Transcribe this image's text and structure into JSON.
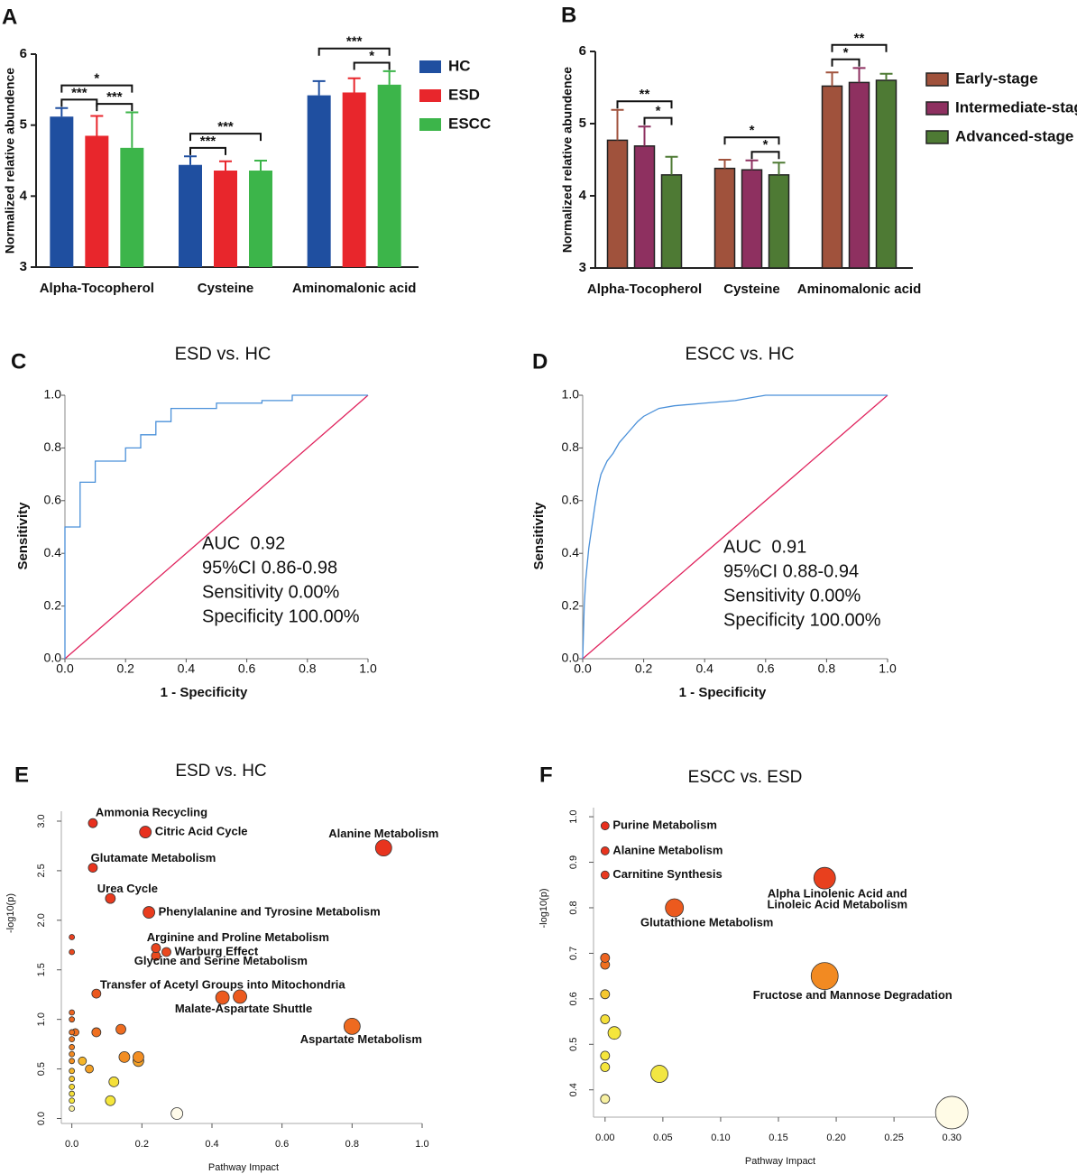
{
  "chart_data": [
    {
      "panel": "A",
      "type": "bar",
      "ylabel": "Normalized relative abundence",
      "categories": [
        "Alpha-Tocopherol",
        "Cysteine",
        "Aminomalonic acid"
      ],
      "ylim": [
        3,
        6
      ],
      "yticks": [
        3,
        4,
        5,
        6
      ],
      "series": [
        {
          "name": "HC",
          "color": "#1f4fa0",
          "values": [
            5.12,
            4.44,
            5.42
          ],
          "errors": [
            0.12,
            0.12,
            0.2
          ]
        },
        {
          "name": "ESD",
          "color": "#e8262c",
          "values": [
            4.85,
            4.36,
            5.46
          ],
          "errors": [
            0.28,
            0.13,
            0.2
          ]
        },
        {
          "name": "ESCC",
          "color": "#3cb54a",
          "values": [
            4.68,
            4.36,
            5.57
          ],
          "errors": [
            0.5,
            0.14,
            0.19
          ]
        }
      ],
      "annotations": [
        {
          "text": "***",
          "category": 0,
          "from": 0,
          "to": 1
        },
        {
          "text": "***",
          "category": 0,
          "from": 1,
          "to": 2
        },
        {
          "text": "*",
          "category": 0,
          "from": 0,
          "to": 2
        },
        {
          "text": "***",
          "category": 1,
          "from": 0,
          "to": 1
        },
        {
          "text": "***",
          "category": 1,
          "from": 0,
          "to": 2
        },
        {
          "text": "*",
          "category": 2,
          "from": 1,
          "to": 2
        },
        {
          "text": "***",
          "category": 2,
          "from": 0,
          "to": 2
        }
      ]
    },
    {
      "panel": "B",
      "type": "bar",
      "ylabel": "Normalized relative abundence",
      "categories": [
        "Alpha-Tocopherol",
        "Cysteine",
        "Aminomalonic acid"
      ],
      "ylim": [
        3,
        6
      ],
      "yticks": [
        3,
        4,
        5,
        6
      ],
      "series": [
        {
          "name": "Early-stage",
          "color": "#a0523c",
          "values": [
            4.77,
            4.38,
            5.52
          ],
          "errors": [
            0.42,
            0.12,
            0.19
          ]
        },
        {
          "name": "Intermediate-stage",
          "color": "#8e3060",
          "values": [
            4.69,
            4.36,
            5.57
          ],
          "errors": [
            0.27,
            0.13,
            0.2
          ]
        },
        {
          "name": "Advanced-stage",
          "color": "#4e7a34",
          "values": [
            4.29,
            4.29,
            5.6
          ],
          "errors": [
            0.25,
            0.17,
            0.09
          ]
        }
      ],
      "annotations": [
        {
          "text": "*",
          "category": 0,
          "from": 1,
          "to": 2
        },
        {
          "text": "**",
          "category": 0,
          "from": 0,
          "to": 2
        },
        {
          "text": "*",
          "category": 1,
          "from": 1,
          "to": 2
        },
        {
          "text": "*",
          "category": 1,
          "from": 0,
          "to": 2
        },
        {
          "text": "*",
          "category": 2,
          "from": 0,
          "to": 1
        },
        {
          "text": "**",
          "category": 2,
          "from": 0,
          "to": 2
        }
      ]
    },
    {
      "panel": "C",
      "type": "line",
      "title": "ESD vs. HC",
      "xlabel": "1 - Specificity",
      "ylabel": "Sensitivity",
      "xlim": [
        0,
        1
      ],
      "ylim": [
        0,
        1
      ],
      "xticks": [
        {
          "value": 0,
          "label": "0.0"
        },
        {
          "value": 0.2,
          "label": "0.2"
        },
        {
          "value": 0.4,
          "label": "0.4"
        },
        {
          "value": 0.6,
          "label": "0.6"
        },
        {
          "value": 0.8,
          "label": "0.8"
        },
        {
          "value": 1,
          "label": "1.0"
        }
      ],
      "yticks": [
        {
          "value": 0,
          "label": "0.0"
        },
        {
          "value": 0.2,
          "label": "0.2"
        },
        {
          "value": 0.4,
          "label": "0.4"
        },
        {
          "value": 0.6,
          "label": "0.6"
        },
        {
          "value": 0.8,
          "label": "0.8"
        },
        {
          "value": 1,
          "label": "1.0"
        }
      ],
      "series": [
        {
          "color": "#4a90d9",
          "x": [
            0,
            0,
            0.05,
            0.05,
            0.1,
            0.1,
            0.2,
            0.2,
            0.25,
            0.25,
            0.3,
            0.3,
            0.35,
            0.35,
            0.5,
            0.5,
            0.65,
            0.65,
            0.75,
            0.75,
            1
          ],
          "values": [
            0,
            0.5,
            0.5,
            0.67,
            0.67,
            0.75,
            0.75,
            0.8,
            0.8,
            0.85,
            0.85,
            0.9,
            0.9,
            0.95,
            0.95,
            0.97,
            0.97,
            0.98,
            0.98,
            1,
            1
          ]
        },
        {
          "color": "#e0245e",
          "x": [
            0,
            1
          ],
          "values": [
            0,
            1
          ]
        }
      ],
      "annotations": [
        "AUC  0.92",
        "95%CI 0.86-0.98",
        "Sensitivity 0.00%",
        "Specificity 100.00%"
      ]
    },
    {
      "panel": "D",
      "type": "line",
      "title": "ESCC vs. HC",
      "xlabel": "1 - Specificity",
      "ylabel": "Sensitivity",
      "xlim": [
        0,
        1
      ],
      "ylim": [
        0,
        1
      ],
      "xticks": [
        {
          "value": 0,
          "label": "0.0"
        },
        {
          "value": 0.2,
          "label": "0.2"
        },
        {
          "value": 0.4,
          "label": "0.4"
        },
        {
          "value": 0.6,
          "label": "0.6"
        },
        {
          "value": 0.8,
          "label": "0.8"
        },
        {
          "value": 1,
          "label": "1.0"
        }
      ],
      "yticks": [
        {
          "value": 0,
          "label": "0.0"
        },
        {
          "value": 0.2,
          "label": "0.2"
        },
        {
          "value": 0.4,
          "label": "0.4"
        },
        {
          "value": 0.6,
          "label": "0.6"
        },
        {
          "value": 0.8,
          "label": "0.8"
        },
        {
          "value": 1,
          "label": "1.0"
        }
      ],
      "series": [
        {
          "color": "#4a90d9",
          "x": [
            0,
            0.005,
            0.01,
            0.02,
            0.03,
            0.04,
            0.05,
            0.06,
            0.08,
            0.1,
            0.12,
            0.15,
            0.18,
            0.2,
            0.25,
            0.3,
            0.4,
            0.5,
            0.55,
            0.6,
            0.7,
            0.8,
            1
          ],
          "values": [
            0,
            0.2,
            0.3,
            0.42,
            0.5,
            0.58,
            0.65,
            0.7,
            0.75,
            0.78,
            0.82,
            0.86,
            0.9,
            0.92,
            0.95,
            0.96,
            0.97,
            0.98,
            0.99,
            1,
            1,
            1,
            1
          ]
        },
        {
          "color": "#e0245e",
          "x": [
            0,
            1
          ],
          "values": [
            0,
            1
          ]
        }
      ],
      "annotations": [
        "AUC  0.91",
        "95%CI 0.88-0.94",
        "Sensitivity 0.00%",
        "Specificity 100.00%"
      ]
    },
    {
      "panel": "E",
      "type": "scatter",
      "title": "ESD vs. HC",
      "xlabel": "Pathway Impact",
      "ylabel": "-log10(p)",
      "xlim": [
        -0.03,
        1
      ],
      "ylim": [
        -0.05,
        3.1
      ],
      "xticks": [
        {
          "value": 0,
          "label": "0.0"
        },
        {
          "value": 0.2,
          "label": "0.2"
        },
        {
          "value": 0.4,
          "label": "0.4"
        },
        {
          "value": 0.6,
          "label": "0.6"
        },
        {
          "value": 0.8,
          "label": "0.8"
        },
        {
          "value": 1,
          "label": "1.0"
        }
      ],
      "yticks": [
        {
          "value": 0,
          "label": "0.0"
        },
        {
          "value": 0.5,
          "label": "0.5"
        },
        {
          "value": 1,
          "label": "1.0"
        },
        {
          "value": 1.5,
          "label": "1.5"
        },
        {
          "value": 2,
          "label": "2.0"
        },
        {
          "value": 2.5,
          "label": "2.5"
        },
        {
          "value": 3,
          "label": "3.0"
        }
      ],
      "x": [
        0.06,
        0.21,
        0.89,
        0.06,
        0.11,
        0.22,
        0.24,
        0.27,
        0.24,
        0.07,
        0.43,
        0.48,
        0.8,
        0,
        0,
        0,
        0,
        0,
        0.01,
        0.07,
        0.14,
        0,
        0,
        0,
        0,
        0.03,
        0.05,
        0.15,
        0.19,
        0.19,
        0,
        0,
        0,
        0,
        0,
        0,
        0.12,
        0.11,
        0.3
      ],
      "values": [
        2.98,
        2.89,
        2.73,
        2.53,
        2.22,
        2.08,
        1.72,
        1.68,
        1.64,
        1.26,
        1.22,
        1.23,
        0.93,
        1.83,
        1.68,
        1.07,
        1.0,
        0.87,
        0.87,
        0.87,
        0.9,
        0.8,
        0.72,
        0.65,
        0.58,
        0.58,
        0.5,
        0.62,
        0.62,
        0.58,
        0.48,
        0.4,
        0.32,
        0.25,
        0.18,
        0.1,
        0.37,
        0.18,
        0.05
      ],
      "sizes": [
        5,
        6.5,
        9,
        5,
        5.5,
        6.5,
        5,
        5,
        5,
        5,
        7.5,
        7.5,
        9,
        3,
        3,
        3,
        3,
        3,
        4,
        5,
        5.5,
        3,
        3,
        3,
        3,
        4.5,
        4.5,
        6,
        6,
        6,
        3,
        3,
        3,
        3,
        3,
        3,
        5.5,
        5.5,
        6.5
      ],
      "colors": [
        "#e8301e",
        "#e8301e",
        "#e8341e",
        "#e8341e",
        "#e93a1e",
        "#e93c1e",
        "#ea451e",
        "#ea481e",
        "#ea4a1e",
        "#ec581e",
        "#ec5a1e",
        "#ec5a1e",
        "#ee6a20",
        "#e94020",
        "#ea481e",
        "#ee6420",
        "#ee6820",
        "#f07020",
        "#f07020",
        "#f07020",
        "#ef6c20",
        "#f07822",
        "#f28022",
        "#f28a22",
        "#f39224",
        "#f5b52a",
        "#f3a026",
        "#f28e24",
        "#f28e24",
        "#f3a026",
        "#f5b52a",
        "#f5c830",
        "#f5d835",
        "#f5e03a",
        "#f5e63c",
        "#f8f0a0",
        "#f5e03a",
        "#f5e63c",
        "#fffbea"
      ],
      "point_labels": [
        "Ammonia Recycling",
        "Citric Acid Cycle",
        "Alanine Metabolism",
        "Glutamate Metabolism",
        "Urea Cycle",
        "Phenylalanine and Tyrosine Metabolism",
        "Arginine and Proline Metabolism",
        "Warburg Effect",
        "Glycine and Serine Metabolism",
        "Transfer of Acetyl Groups into Mitochondria",
        null,
        "Malate-Aspartate Shuttle",
        "Aspartate Metabolism",
        null,
        null,
        null,
        null,
        null,
        null,
        null,
        null,
        null,
        null,
        null,
        null,
        null,
        null,
        null,
        null,
        null,
        null,
        null,
        null,
        null,
        null,
        null,
        null,
        null,
        null
      ]
    },
    {
      "panel": "F",
      "type": "scatter",
      "title": "ESCC vs. ESD",
      "xlabel": "Pathway Impact",
      "ylabel": "-log10(p)",
      "xlim": [
        -0.01,
        0.31
      ],
      "ylim": [
        0.34,
        1.02
      ],
      "xticks": [
        {
          "value": 0,
          "label": "0.00"
        },
        {
          "value": 0.05,
          "label": "0.05"
        },
        {
          "value": 0.1,
          "label": "0.10"
        },
        {
          "value": 0.15,
          "label": "0.15"
        },
        {
          "value": 0.2,
          "label": "0.20"
        },
        {
          "value": 0.25,
          "label": "0.25"
        },
        {
          "value": 0.3,
          "label": "0.30"
        }
      ],
      "yticks": [
        0.4,
        0.5,
        0.6,
        0.7,
        0.8,
        0.9,
        {
          "value": 1,
          "label": "1.0"
        }
      ],
      "x": [
        0,
        0,
        0,
        0.19,
        0.06,
        0.19,
        0,
        0,
        0,
        0,
        0.008,
        0,
        0,
        0.047,
        0,
        0.3
      ],
      "values": [
        0.98,
        0.925,
        0.872,
        0.865,
        0.8,
        0.65,
        0.69,
        0.675,
        0.61,
        0.555,
        0.525,
        0.475,
        0.45,
        0.435,
        0.38,
        0.35
      ],
      "sizes": [
        4.5,
        4.5,
        4.5,
        12,
        10,
        15,
        5,
        5,
        5,
        5,
        7,
        5,
        5,
        9.5,
        5,
        18
      ],
      "colors": [
        "#e8301e",
        "#e8341e",
        "#e8381e",
        "#e8401e",
        "#ec5a1e",
        "#f28a22",
        "#ee6420",
        "#f07020",
        "#f5c830",
        "#f5e03a",
        "#f5e63c",
        "#f5e63c",
        "#f5e63c",
        "#f2e642",
        "#f7f0a0",
        "#fffbe6"
      ],
      "point_labels": [
        "Purine Metabolism",
        "Alanine Metabolism",
        "Carnitine Synthesis",
        [
          "Alpha Linolenic Acid and",
          "Linoleic Acid Metabolism"
        ],
        "Glutathione Metabolism",
        "Fructose and Mannose Degradation",
        null,
        null,
        null,
        null,
        null,
        null,
        null,
        null,
        null,
        null
      ]
    }
  ]
}
